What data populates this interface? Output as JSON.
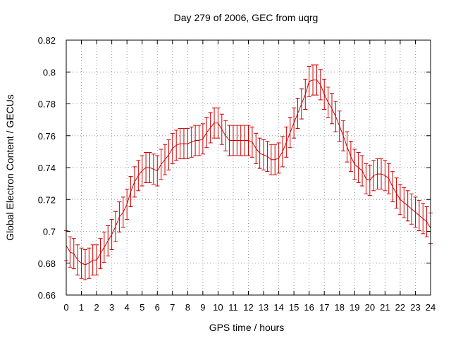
{
  "chart_data": {
    "type": "line",
    "title": "Day 279 of 2006, GEC from uqrg",
    "xlabel": "GPS time / hours",
    "ylabel": "Global Electron Content / GECUs",
    "xlim": [
      0,
      24
    ],
    "ylim": [
      0.66,
      0.82
    ],
    "xticks": [
      0,
      1,
      2,
      3,
      4,
      5,
      6,
      7,
      8,
      9,
      10,
      11,
      12,
      13,
      14,
      15,
      16,
      17,
      18,
      19,
      20,
      21,
      22,
      23,
      24
    ],
    "xtick_labels": [
      "0",
      "1",
      "2",
      "3",
      "4",
      "5",
      "6",
      "7",
      "8",
      "9",
      "10",
      "11",
      "12",
      "13",
      "14",
      "15",
      "16",
      "17",
      "18",
      "19",
      "20",
      "21",
      "22",
      "23",
      "24"
    ],
    "yticks": [
      0.66,
      0.68,
      0.7,
      0.72,
      0.74,
      0.76,
      0.78,
      0.8,
      0.82
    ],
    "ytick_labels": [
      "0.66",
      "0.68",
      "0.7",
      "0.72",
      "0.74",
      "0.76",
      "0.78",
      "0.8",
      "0.82"
    ],
    "grid": true,
    "line_color": "#cc0000",
    "error": 0.0095,
    "series": [
      {
        "points": [
          [
            0.0,
            0.691
          ],
          [
            0.25,
            0.687
          ],
          [
            0.5,
            0.686
          ],
          [
            0.75,
            0.682
          ],
          [
            1.0,
            0.68
          ],
          [
            1.25,
            0.679
          ],
          [
            1.5,
            0.68
          ],
          [
            1.75,
            0.682
          ],
          [
            2.0,
            0.682
          ],
          [
            2.25,
            0.686
          ],
          [
            2.5,
            0.69
          ],
          [
            2.75,
            0.694
          ],
          [
            3.0,
            0.698
          ],
          [
            3.25,
            0.703
          ],
          [
            3.5,
            0.709
          ],
          [
            3.75,
            0.712
          ],
          [
            4.0,
            0.717
          ],
          [
            4.25,
            0.725
          ],
          [
            4.5,
            0.731
          ],
          [
            4.75,
            0.735
          ],
          [
            5.0,
            0.738
          ],
          [
            5.25,
            0.74
          ],
          [
            5.5,
            0.74
          ],
          [
            5.75,
            0.739
          ],
          [
            6.0,
            0.738
          ],
          [
            6.25,
            0.742
          ],
          [
            6.5,
            0.745
          ],
          [
            6.75,
            0.748
          ],
          [
            7.0,
            0.752
          ],
          [
            7.25,
            0.754
          ],
          [
            7.5,
            0.755
          ],
          [
            7.75,
            0.755
          ],
          [
            8.0,
            0.755
          ],
          [
            8.25,
            0.756
          ],
          [
            8.5,
            0.757
          ],
          [
            8.75,
            0.757
          ],
          [
            9.0,
            0.758
          ],
          [
            9.25,
            0.762
          ],
          [
            9.5,
            0.765
          ],
          [
            9.75,
            0.768
          ],
          [
            10.0,
            0.768
          ],
          [
            10.25,
            0.764
          ],
          [
            10.5,
            0.76
          ],
          [
            10.75,
            0.757
          ],
          [
            11.0,
            0.757
          ],
          [
            11.25,
            0.757
          ],
          [
            11.5,
            0.757
          ],
          [
            11.75,
            0.757
          ],
          [
            12.0,
            0.757
          ],
          [
            12.25,
            0.756
          ],
          [
            12.5,
            0.752
          ],
          [
            12.75,
            0.749
          ],
          [
            13.0,
            0.748
          ],
          [
            13.25,
            0.747
          ],
          [
            13.5,
            0.745
          ],
          [
            13.75,
            0.745
          ],
          [
            14.0,
            0.746
          ],
          [
            14.25,
            0.75
          ],
          [
            14.5,
            0.756
          ],
          [
            14.75,
            0.762
          ],
          [
            15.0,
            0.768
          ],
          [
            15.25,
            0.774
          ],
          [
            15.5,
            0.78
          ],
          [
            15.75,
            0.786
          ],
          [
            16.0,
            0.794
          ],
          [
            16.25,
            0.795
          ],
          [
            16.5,
            0.795
          ],
          [
            16.75,
            0.792
          ],
          [
            17.0,
            0.786
          ],
          [
            17.25,
            0.781
          ],
          [
            17.5,
            0.777
          ],
          [
            17.75,
            0.772
          ],
          [
            18.0,
            0.766
          ],
          [
            18.25,
            0.76
          ],
          [
            18.5,
            0.753
          ],
          [
            18.75,
            0.747
          ],
          [
            19.0,
            0.742
          ],
          [
            19.25,
            0.74
          ],
          [
            19.5,
            0.738
          ],
          [
            19.75,
            0.733
          ],
          [
            20.0,
            0.732
          ],
          [
            20.25,
            0.735
          ],
          [
            20.5,
            0.736
          ],
          [
            20.75,
            0.736
          ],
          [
            21.0,
            0.735
          ],
          [
            21.25,
            0.733
          ],
          [
            21.5,
            0.728
          ],
          [
            21.75,
            0.724
          ],
          [
            22.0,
            0.72
          ],
          [
            22.25,
            0.718
          ],
          [
            22.5,
            0.716
          ],
          [
            22.75,
            0.714
          ],
          [
            23.0,
            0.712
          ],
          [
            23.25,
            0.71
          ],
          [
            23.5,
            0.708
          ],
          [
            23.75,
            0.706
          ],
          [
            24.0,
            0.702
          ]
        ]
      }
    ]
  }
}
